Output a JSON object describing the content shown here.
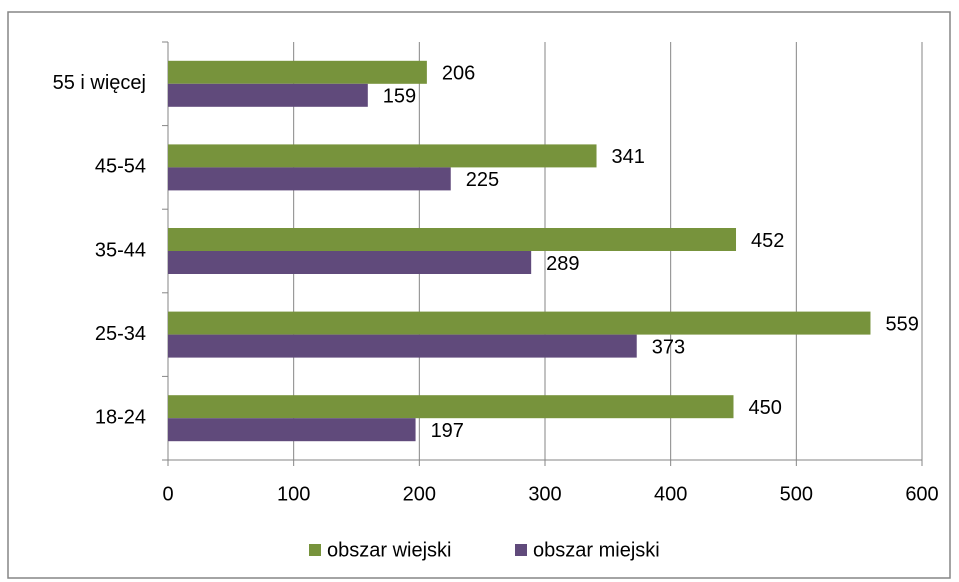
{
  "chart_data": {
    "type": "bar",
    "orientation": "horizontal",
    "categories": [
      "18-24",
      "25-34",
      "35-44",
      "45-54",
      "55 i więcej"
    ],
    "series": [
      {
        "name": "obszar wiejski",
        "color": "#77933c",
        "values": [
          450,
          559,
          452,
          341,
          206
        ]
      },
      {
        "name": "obszar miejski",
        "color": "#604a7b",
        "values": [
          197,
          373,
          289,
          225,
          159
        ]
      }
    ],
    "xlim": [
      0,
      600
    ],
    "xticks": [
      0,
      100,
      200,
      300,
      400,
      500,
      600
    ],
    "grid": true,
    "legend": "bottom"
  }
}
